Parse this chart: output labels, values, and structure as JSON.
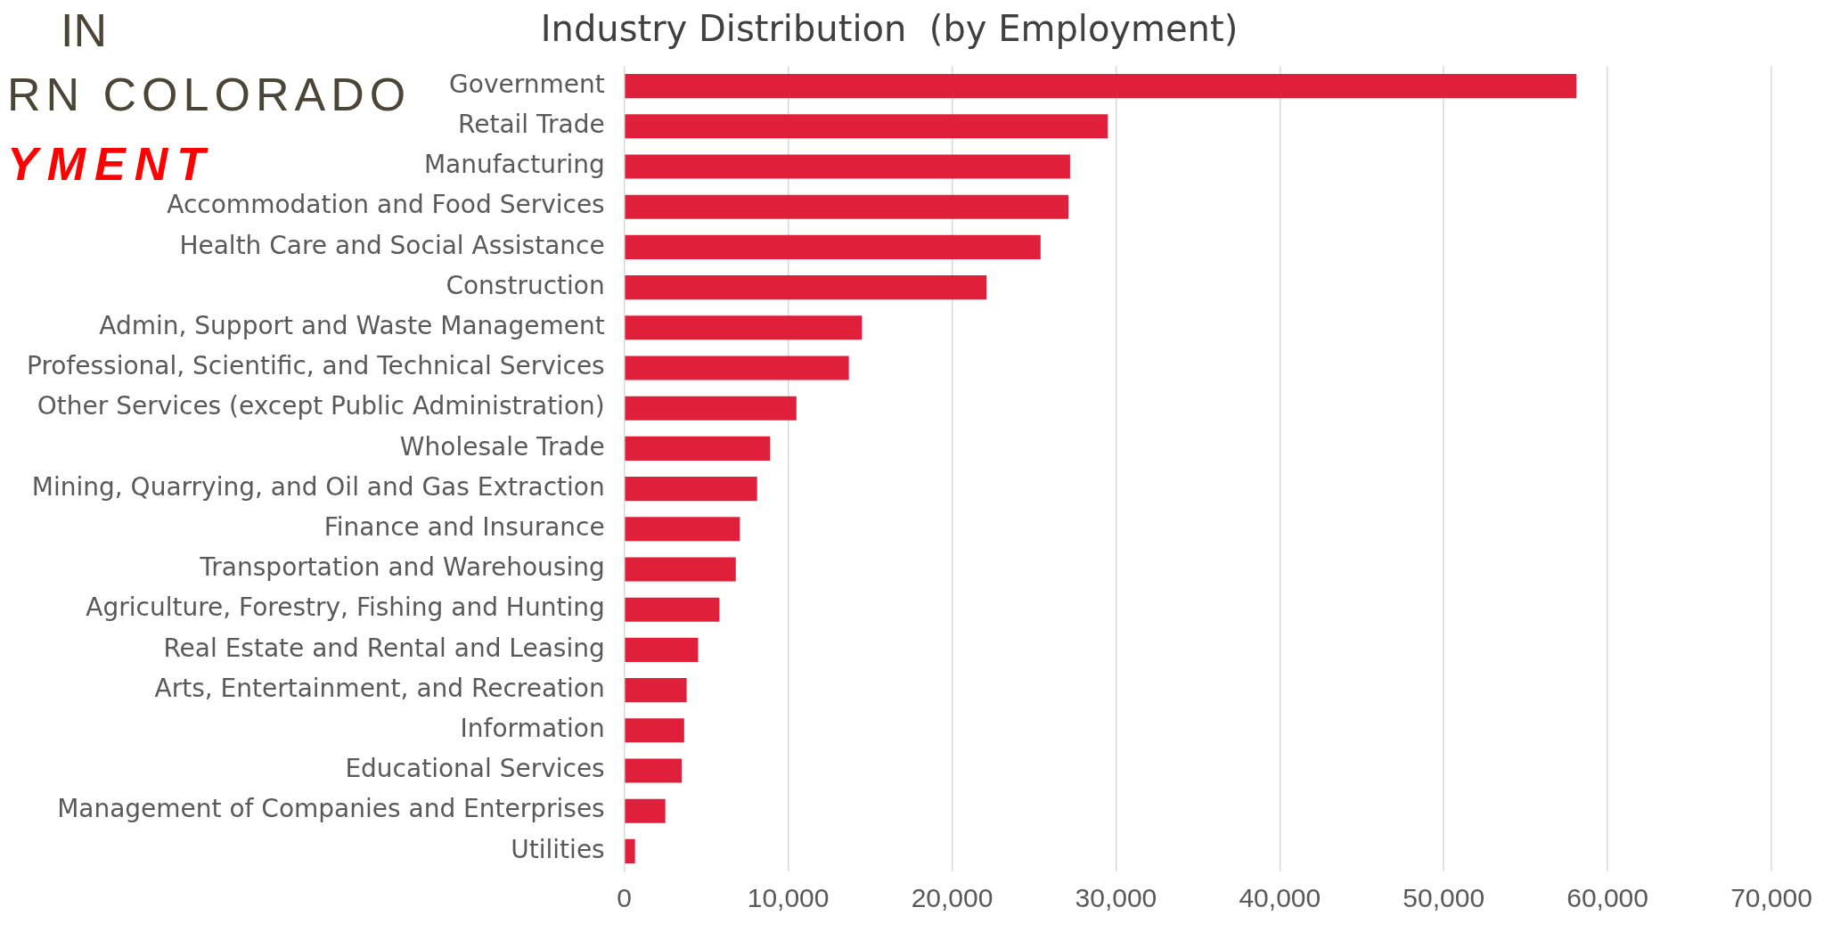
{
  "chart_data": {
    "type": "bar",
    "orientation": "horizontal",
    "title": "Industry Distribution  (by Employment)",
    "categories": [
      "Government",
      "Retail Trade",
      "Manufacturing",
      "Accommodation and Food Services",
      "Health Care and Social Assistance",
      "Construction",
      "Admin, Support and Waste Management",
      "Professional, Scientific, and Technical Services",
      "Other Services (except Public Administration)",
      "Wholesale Trade",
      "Mining, Quarrying, and Oil and Gas Extraction",
      "Finance and Insurance",
      "Transportation and Warehousing",
      "Agriculture, Forestry, Fishing and Hunting",
      "Real Estate and Rental and Leasing",
      "Arts, Entertainment, and Recreation",
      "Information",
      "Educational Services",
      "Management of Companies and Enterprises",
      "Utilities"
    ],
    "values": [
      58100,
      29500,
      27200,
      27100,
      25400,
      22100,
      14500,
      13700,
      10500,
      8900,
      8100,
      7050,
      6800,
      5800,
      4500,
      3800,
      3650,
      3500,
      2500,
      650
    ],
    "color": "#e0203a",
    "xlim": [
      0,
      70000
    ],
    "xticks": [
      0,
      {
        "value": 10000,
        "label": "10,000"
      },
      {
        "value": 20000,
        "label": "20,000"
      },
      {
        "value": 30000,
        "label": "30,000"
      },
      {
        "value": 40000,
        "label": "40,000"
      },
      {
        "value": 50000,
        "label": "50,000"
      },
      {
        "value": 60000,
        "label": "60,000"
      },
      {
        "value": 70000,
        "label": "70,000"
      }
    ],
    "grid": "x",
    "annotations": [
      "IN",
      "RN COLORADO",
      "YMENT"
    ]
  }
}
